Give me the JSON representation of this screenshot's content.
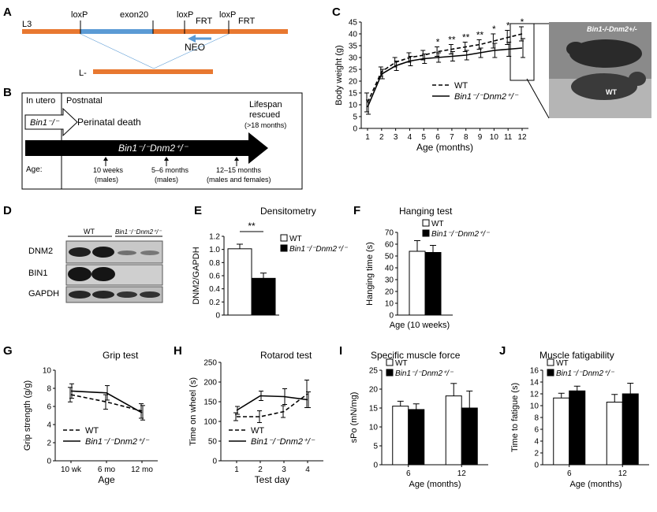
{
  "panels": {
    "A": {
      "letter": "A",
      "l3_label": "L3",
      "loxp1": "loxP",
      "exon": "exon20",
      "loxp2": "loxP",
      "frt1": "FRT",
      "loxp3": "loxP",
      "frt2": "FRT",
      "neo": "NEO",
      "lminus_label": "L-",
      "colors": {
        "bar": "#e87830",
        "exon": "#5b9bd5",
        "neo_arrow": "#5b9bd5"
      }
    },
    "B": {
      "letter": "B",
      "in_utero": "In utero",
      "postnatal": "Postnatal",
      "bin1_ko": "Bin1⁻/⁻",
      "perinatal_death": "Perinatal death",
      "lifespan": "Lifespan",
      "rescued": "rescued",
      "gt18": "(>18 months)",
      "dko": "Bin1⁻/⁻Dnm2⁺/⁻",
      "age_label": "Age:",
      "age1": "10 weeks",
      "age1_sub": "(males)",
      "age2": "5–6 months",
      "age2_sub": "(males)",
      "age3": "12–15 months",
      "age3_sub": "(males and females)"
    },
    "D": {
      "letter": "D",
      "wt": "WT",
      "dko": "Bin1⁻/⁻Dnm2⁺/⁻",
      "rows": [
        "DNM2",
        "BIN1",
        "GAPDH"
      ]
    },
    "photo": {
      "label": "Bin1-/-Dnm2+/-",
      "wt_label": "WT"
    }
  },
  "chart_data": [
    {
      "id": "C",
      "letter": "C",
      "type": "line",
      "title": "",
      "xlabel": "Age (months)",
      "ylabel": "Body weight (g)",
      "x": [
        1,
        2,
        3,
        4,
        5,
        6,
        7,
        8,
        9,
        10,
        11,
        12
      ],
      "ylim": [
        0,
        45
      ],
      "yticks": [
        0,
        5,
        10,
        15,
        20,
        25,
        30,
        35,
        40,
        45
      ],
      "series": [
        {
          "name": "WT",
          "style": "dashed",
          "values": [
            11,
            24,
            28,
            30,
            31,
            32.5,
            33.5,
            34.5,
            35.5,
            37,
            38.5,
            40
          ],
          "errors": [
            4,
            2,
            2,
            2,
            2,
            2,
            2,
            2,
            2,
            3,
            3,
            3
          ]
        },
        {
          "name": "Bin1⁻/⁻Dnm2⁺/⁻",
          "style": "solid",
          "values": [
            9,
            23,
            26.5,
            28.5,
            29.5,
            30,
            30.5,
            31,
            32,
            33,
            33.5,
            34
          ],
          "errors": [
            3,
            2,
            2,
            2,
            2,
            2,
            2,
            2,
            2,
            3,
            3,
            4
          ]
        }
      ],
      "significance": [
        {
          "x": 6,
          "label": "*"
        },
        {
          "x": 7,
          "label": "**"
        },
        {
          "x": 8,
          "label": "**"
        },
        {
          "x": 9,
          "label": "**"
        },
        {
          "x": 10,
          "label": "*"
        },
        {
          "x": 11,
          "label": "*"
        },
        {
          "x": 12,
          "label": "*"
        }
      ]
    },
    {
      "id": "E",
      "letter": "E",
      "type": "bar",
      "title": "Densitometry",
      "xlabel": "",
      "ylabel": "DNM2/GAPDH",
      "ylim": [
        0,
        1.2
      ],
      "yticks": [
        0,
        0.2,
        0.4,
        0.6,
        0.8,
        1.0,
        1.2
      ],
      "ytick_labels": [
        "0",
        "0.2",
        "0.4",
        "0.6",
        "0.8",
        "1.0",
        "1.2"
      ],
      "series": [
        {
          "name": "WT",
          "fill": "white",
          "values": [
            1.01
          ],
          "errors": [
            0.07
          ]
        },
        {
          "name": "Bin1⁻/⁻Dnm2⁺/⁻",
          "fill": "black",
          "values": [
            0.56
          ],
          "errors": [
            0.08
          ]
        }
      ],
      "significance": "**"
    },
    {
      "id": "F",
      "letter": "F",
      "type": "bar",
      "title": "Hanging test",
      "xlabel": "Age (10 weeks)",
      "ylabel": "Hanging time (s)",
      "ylim": [
        0,
        70
      ],
      "yticks": [
        0,
        10,
        20,
        30,
        40,
        50,
        60,
        70
      ],
      "series": [
        {
          "name": "WT",
          "fill": "white",
          "values": [
            54
          ],
          "errors": [
            9
          ]
        },
        {
          "name": "Bin1⁻/⁻Dnm2⁺/⁻",
          "fill": "black",
          "values": [
            53
          ],
          "errors": [
            6
          ]
        }
      ]
    },
    {
      "id": "G",
      "letter": "G",
      "type": "line",
      "title": "Grip test",
      "xlabel": "Age",
      "ylabel": "Grip strength (g/g)",
      "categories": [
        "10 wk",
        "6 mo",
        "12 mo"
      ],
      "ylim": [
        0,
        10
      ],
      "yticks": [
        0,
        2,
        4,
        6,
        8,
        10
      ],
      "series": [
        {
          "name": "WT",
          "style": "dashed",
          "values": [
            7.3,
            6.5,
            5.5
          ],
          "errors": [
            0.8,
            0.8,
            0.8
          ]
        },
        {
          "name": "Bin1⁻/⁻Dnm2⁺/⁻",
          "style": "solid",
          "values": [
            7.7,
            7.5,
            5.3
          ],
          "errors": [
            0.8,
            0.8,
            0.8
          ]
        }
      ]
    },
    {
      "id": "H",
      "letter": "H",
      "type": "line",
      "title": "Rotarod test",
      "xlabel": "Test day",
      "ylabel": "Time on wheel (s)",
      "categories": [
        "1",
        "2",
        "3",
        "4"
      ],
      "ylim": [
        0,
        250
      ],
      "yticks": [
        0,
        50,
        100,
        150,
        200,
        250
      ],
      "series": [
        {
          "name": "WT",
          "style": "dashed",
          "values": [
            112,
            112,
            125,
            170
          ],
          "errors": [
            10,
            15,
            15,
            35
          ]
        },
        {
          "name": "Bin1⁻/⁻Dnm2⁺/⁻",
          "style": "solid",
          "values": [
            128,
            165,
            163,
            155
          ],
          "errors": [
            10,
            12,
            20,
            20
          ]
        }
      ]
    },
    {
      "id": "I",
      "letter": "I",
      "type": "bar",
      "title": "Specific muscle force",
      "xlabel": "Age (months)",
      "ylabel": "sPo (mN/mg)",
      "categories": [
        "6",
        "12"
      ],
      "ylim": [
        0,
        25
      ],
      "yticks": [
        0,
        5,
        10,
        15,
        20,
        25
      ],
      "series": [
        {
          "name": "WT",
          "fill": "white",
          "values": [
            15.5,
            18.2
          ],
          "errors": [
            1.3,
            3.3
          ]
        },
        {
          "name": "Bin1⁻/⁻Dnm2⁺/⁻",
          "fill": "black",
          "values": [
            14.6,
            15.0
          ],
          "errors": [
            1.5,
            4.5
          ]
        }
      ]
    },
    {
      "id": "J",
      "letter": "J",
      "type": "bar",
      "title": "Muscle fatigability",
      "xlabel": "Age (months)",
      "ylabel": "Time to fatigue (s)",
      "categories": [
        "6",
        "12"
      ],
      "ylim": [
        0,
        16
      ],
      "yticks": [
        0,
        2,
        4,
        6,
        8,
        10,
        12,
        14,
        16
      ],
      "series": [
        {
          "name": "WT",
          "fill": "white",
          "values": [
            11.3,
            10.6
          ],
          "errors": [
            0.8,
            1.3
          ]
        },
        {
          "name": "Bin1⁻/⁻Dnm2⁺/⁻",
          "fill": "black",
          "values": [
            12.5,
            12.0
          ],
          "errors": [
            0.8,
            1.8
          ]
        }
      ]
    }
  ]
}
